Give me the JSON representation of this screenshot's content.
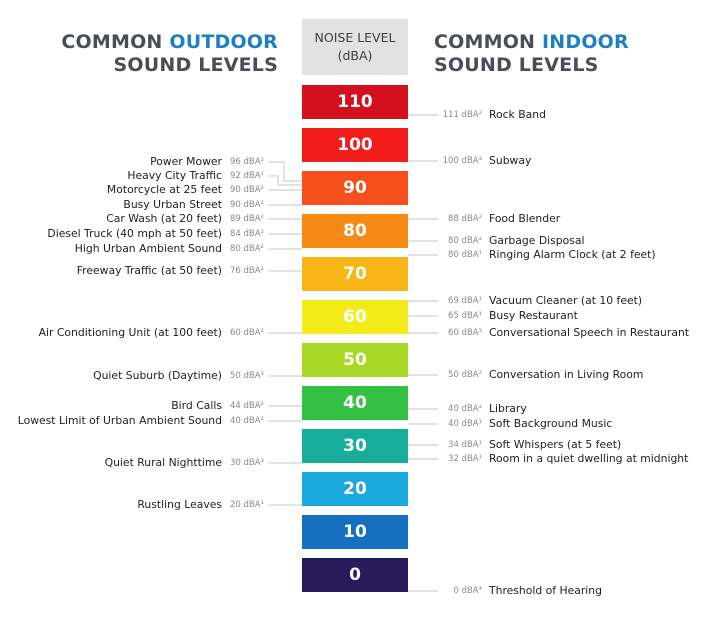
{
  "headers": {
    "outdoor": {
      "line1_plain": "COMMON ",
      "line1_accent": "OUTDOOR",
      "line2": "SOUND LEVELS"
    },
    "noise": {
      "line1": "NOISE LEVEL",
      "line2": "(dBA)"
    },
    "indoor": {
      "line1_plain": "COMMON ",
      "line1_accent": "INDOOR",
      "line2": "SOUND LEVELS"
    }
  },
  "colors": {
    "accent": "#1f7fc3",
    "header_text": "#4a4d55",
    "header_box": "#e2e2e2",
    "leader": "#c6c6c6"
  },
  "levels": [
    {
      "label": "110",
      "color": "#d4101f"
    },
    {
      "label": "100",
      "color": "#f21c1c"
    },
    {
      "label": "90",
      "color": "#f5501c"
    },
    {
      "label": "80",
      "color": "#f78a14"
    },
    {
      "label": "70",
      "color": "#f8b515"
    },
    {
      "label": "60",
      "color": "#f4ec1a"
    },
    {
      "label": "50",
      "color": "#a8d823"
    },
    {
      "label": "40",
      "color": "#34c043"
    },
    {
      "label": "30",
      "color": "#18ad9b"
    },
    {
      "label": "20",
      "color": "#1ba8df"
    },
    {
      "label": "10",
      "color": "#1670c0"
    },
    {
      "label": "0",
      "color": "#2a1a5c"
    }
  ],
  "outdoor_sources": [
    {
      "name": "Power Mower",
      "value": "96 dBA²"
    },
    {
      "name": "Heavy City Traffic",
      "value": "92 dBA¹"
    },
    {
      "name": "Motorcycle at 25 feet",
      "value": "90 dBA²"
    },
    {
      "name": "Busy Urban Street",
      "value": "90 dBA²"
    },
    {
      "name": "Car Wash (at 20 feet)",
      "value": "89 dBA²"
    },
    {
      "name": "Diesel Truck (40 mph at 50 feet)",
      "value": "84 dBA²"
    },
    {
      "name": "High Urban Ambient Sound",
      "value": "80 dBA²"
    },
    {
      "name": "Freeway Traffic (at 50 feet)",
      "value": "76 dBA²"
    },
    {
      "name": "Air Conditioning Unit (at 100 feet)",
      "value": "60 dBA²"
    },
    {
      "name": "Quiet Suburb (Daytime)",
      "value": "50 dBA³"
    },
    {
      "name": "Bird Calls",
      "value": "44 dBA²"
    },
    {
      "name": "Lowest Limit of Urban Ambient Sound",
      "value": "40 dBA²"
    },
    {
      "name": "Quiet Rural Nighttime",
      "value": "30 dBA³"
    },
    {
      "name": "Rustling Leaves",
      "value": "20 dBA¹"
    }
  ],
  "indoor_sources": [
    {
      "name": "Rock Band",
      "value": "111 dBA²"
    },
    {
      "name": "Subway",
      "value": "100 dBA³"
    },
    {
      "name": "Food Blender",
      "value": "88 dBA²"
    },
    {
      "name": "Garbage Disposal",
      "value": "80 dBA²"
    },
    {
      "name": "Ringing Alarm Clock (at 2 feet)",
      "value": "80 dBA¹"
    },
    {
      "name": "Vacuum Cleaner (at 10 feet)",
      "value": "69 dBA¹"
    },
    {
      "name": "Busy Restaurant",
      "value": "65 dBA¹"
    },
    {
      "name": "Conversational Speech in Restaurant",
      "value": "60 dBA³"
    },
    {
      "name": "Conversation in Living Room",
      "value": "50 dBA²"
    },
    {
      "name": "Library",
      "value": "40 dBA²"
    },
    {
      "name": "Soft Background Music",
      "value": "40 dBA¹"
    },
    {
      "name": "Soft Whispers (at 5 feet)",
      "value": "34 dBA¹"
    },
    {
      "name": "Room in a quiet dwelling at midnight",
      "value": "32 dBA¹"
    },
    {
      "name": "Threshold of Hearing",
      "value": "0 dBA⁴"
    }
  ]
}
